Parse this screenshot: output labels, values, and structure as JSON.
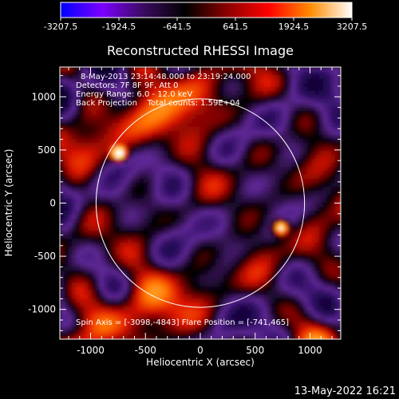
{
  "chart_data": {
    "type": "heatmap",
    "title": "Reconstructed RHESSI Image",
    "xlabel": "Heliocentric X (arcsec)",
    "ylabel": "Heliocentric Y (arcsec)",
    "xlim": [
      -1280,
      1280
    ],
    "ylim": [
      -1280,
      1280
    ],
    "xticks": [
      -1000,
      -500,
      0,
      500,
      1000
    ],
    "yticks": [
      -1000,
      -500,
      0,
      500,
      1000
    ],
    "colorbar": {
      "min": -3207.5,
      "max": 3207.5,
      "tick_labels": [
        "-3207.5",
        "-1924.5",
        "-641.5",
        "641.5",
        "1924.5",
        "3207.5"
      ],
      "colors": [
        "#0000ff",
        "#7b00ff",
        "#3a0b5e",
        "#000000",
        "#8b0000",
        "#ff0000",
        "#ff8c00",
        "#ffffff"
      ]
    },
    "annotations": [
      "8-May-2013 23:14:48.000 to 23:19:24.000",
      "Detectors: 7F 8F 9F, Att 0",
      "Energy Range: 6.0 - 12.0 keV",
      "Back Projection    Total counts: 1.59E+04",
      "Spin Axis = [-3098,-4843] Flare Position = [-741,465]"
    ],
    "solar_limb_radius_arcsec": 950,
    "bright_sources": [
      {
        "x": -741,
        "y": 465,
        "level": 1.0
      },
      {
        "x": 735,
        "y": -230,
        "level": 0.9
      }
    ]
  },
  "footer": {
    "date": "13-May-2022 16:21"
  }
}
